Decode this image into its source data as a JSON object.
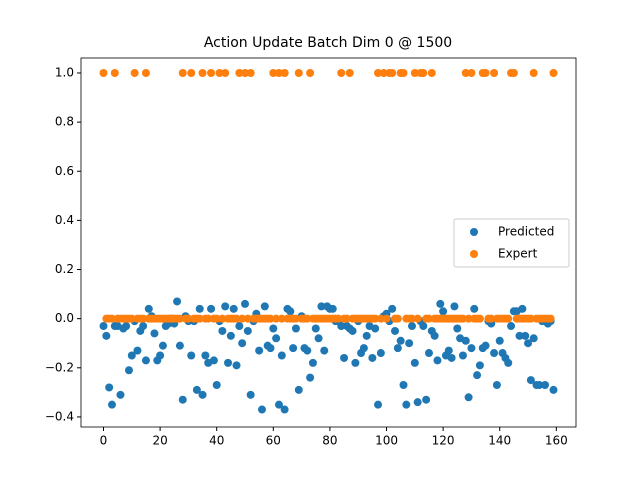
{
  "chart_data": {
    "type": "scatter",
    "title": "Action Update Batch Dim 0 @ 1500",
    "x": [
      0,
      1,
      2,
      3,
      4,
      5,
      6,
      7,
      8,
      9,
      10,
      11,
      12,
      13,
      14,
      15,
      16,
      17,
      18,
      19,
      20,
      21,
      22,
      23,
      24,
      25,
      26,
      27,
      28,
      29,
      30,
      31,
      32,
      33,
      34,
      35,
      36,
      37,
      38,
      39,
      40,
      41,
      42,
      43,
      44,
      45,
      46,
      47,
      48,
      49,
      50,
      51,
      52,
      53,
      54,
      55,
      56,
      57,
      58,
      59,
      60,
      61,
      62,
      63,
      64,
      65,
      66,
      67,
      68,
      69,
      70,
      71,
      72,
      73,
      74,
      75,
      76,
      77,
      78,
      79,
      80,
      81,
      82,
      83,
      84,
      85,
      86,
      87,
      88,
      89,
      90,
      91,
      92,
      93,
      94,
      95,
      96,
      97,
      98,
      99,
      100,
      101,
      102,
      103,
      104,
      105,
      106,
      107,
      108,
      109,
      110,
      111,
      112,
      113,
      114,
      115,
      116,
      117,
      118,
      119,
      120,
      121,
      122,
      123,
      124,
      125,
      126,
      127,
      128,
      129,
      130,
      131,
      132,
      133,
      134,
      135,
      136,
      137,
      138,
      139,
      140,
      141,
      142,
      143,
      144,
      145,
      146,
      147,
      148,
      149,
      150,
      151,
      152,
      153,
      154,
      155,
      156,
      157,
      158,
      159
    ],
    "series": [
      {
        "name": "Predicted",
        "color": "#1f77b4",
        "values": [
          -0.03,
          -0.07,
          -0.28,
          -0.35,
          -0.03,
          -0.03,
          -0.31,
          -0.04,
          -0.03,
          -0.21,
          -0.15,
          -0.01,
          -0.13,
          -0.05,
          -0.03,
          -0.17,
          0.04,
          0.01,
          -0.06,
          -0.17,
          -0.15,
          -0.11,
          -0.03,
          -0.02,
          0,
          -0.02,
          0.07,
          -0.11,
          -0.33,
          0.01,
          -0.01,
          -0.15,
          -0.01,
          -0.29,
          0.04,
          -0.31,
          -0.15,
          -0.18,
          0.04,
          -0.17,
          -0.27,
          -0.01,
          -0.05,
          0.05,
          -0.18,
          -0.07,
          0.04,
          -0.19,
          -0.03,
          -0.1,
          0.06,
          -0.05,
          -0.31,
          -0.01,
          0.02,
          -0.13,
          -0.37,
          0.05,
          -0.11,
          -0.12,
          -0.04,
          -0.08,
          -0.35,
          -0.15,
          -0.37,
          0.04,
          0.03,
          -0.12,
          -0.04,
          -0.29,
          0.01,
          -0.12,
          -0.13,
          -0.24,
          -0.18,
          -0.04,
          -0.08,
          0.05,
          -0.13,
          0.05,
          0.04,
          0.04,
          -0.01,
          -0.01,
          -0.03,
          -0.16,
          -0.03,
          -0.04,
          -0.05,
          -0.18,
          -0.01,
          -0.14,
          -0.12,
          -0.07,
          -0.03,
          -0.16,
          -0.04,
          -0.35,
          -0.14,
          0.01,
          0.02,
          -0.01,
          0.04,
          -0.05,
          -0.12,
          -0.09,
          -0.27,
          -0.35,
          -0.1,
          -0.03,
          -0.18,
          -0.34,
          -0.01,
          -0.03,
          -0.33,
          -0.14,
          -0.05,
          -0.07,
          -0.17,
          0.06,
          0.03,
          -0.15,
          -0.13,
          -0.16,
          0.05,
          -0.04,
          -0.08,
          -0.15,
          -0.09,
          -0.32,
          -0.12,
          0.04,
          -0.23,
          -0.19,
          -0.12,
          -0.11,
          -0.01,
          -0.02,
          -0.14,
          -0.27,
          -0.09,
          -0.14,
          -0.16,
          -0.18,
          -0.03,
          0.03,
          0.03,
          -0.07,
          0.04,
          -0.07,
          -0.1,
          -0.25,
          -0.08,
          -0.27,
          -0.27,
          -0.01,
          -0.27,
          -0.02,
          -0.01,
          -0.29
        ]
      },
      {
        "name": "Expert",
        "color": "#ff7f0e",
        "values": [
          1,
          0,
          0,
          0,
          1,
          0,
          0,
          0,
          0,
          0,
          0,
          1,
          0,
          0,
          0,
          1,
          0,
          0,
          0,
          0,
          0,
          0,
          0,
          0,
          0,
          0,
          0,
          0,
          1,
          0,
          0,
          1,
          0,
          0,
          0,
          1,
          0,
          0,
          1,
          0,
          0,
          1,
          0,
          1,
          0,
          0,
          0,
          0,
          1,
          0,
          1,
          0,
          1,
          0,
          0,
          0,
          0,
          0,
          0,
          0,
          1,
          0,
          1,
          0,
          1,
          0,
          0,
          0,
          0,
          1,
          0,
          0,
          0,
          1,
          0,
          0,
          0,
          0,
          0,
          0,
          0,
          0,
          0,
          0,
          1,
          0,
          0,
          1,
          0,
          0,
          0,
          0,
          0,
          0,
          0,
          0,
          0,
          1,
          0,
          1,
          0,
          1,
          1,
          0,
          0,
          1,
          1,
          0,
          0,
          0,
          1,
          0,
          1,
          1,
          0,
          0,
          1,
          0,
          0,
          0,
          0,
          0,
          0,
          0,
          0,
          0,
          0,
          0,
          1,
          0,
          1,
          0,
          0,
          0,
          1,
          1,
          0,
          0,
          1,
          0,
          0,
          0,
          0,
          0,
          1,
          1,
          0,
          0,
          0,
          0,
          0,
          0,
          1,
          0,
          0,
          0,
          0,
          0,
          0,
          1
        ]
      }
    ],
    "xlim": [
      -7.95,
      166.95
    ],
    "ylim": [
      -0.441,
      1.061
    ],
    "xticks": [
      0,
      20,
      40,
      60,
      80,
      100,
      120,
      140,
      160
    ],
    "yticks": [
      {
        "value": -0.4,
        "label": "−0.4"
      },
      {
        "value": -0.2,
        "label": "−0.2"
      },
      {
        "value": 0,
        "label": "0.0"
      },
      {
        "value": 0.2,
        "label": "0.2"
      },
      {
        "value": 0.4,
        "label": "0.4"
      },
      {
        "value": 0.6,
        "label": "0.6"
      },
      {
        "value": 0.8,
        "label": "0.8"
      },
      {
        "value": 1,
        "label": "1.0"
      }
    ],
    "legend": "center right"
  }
}
